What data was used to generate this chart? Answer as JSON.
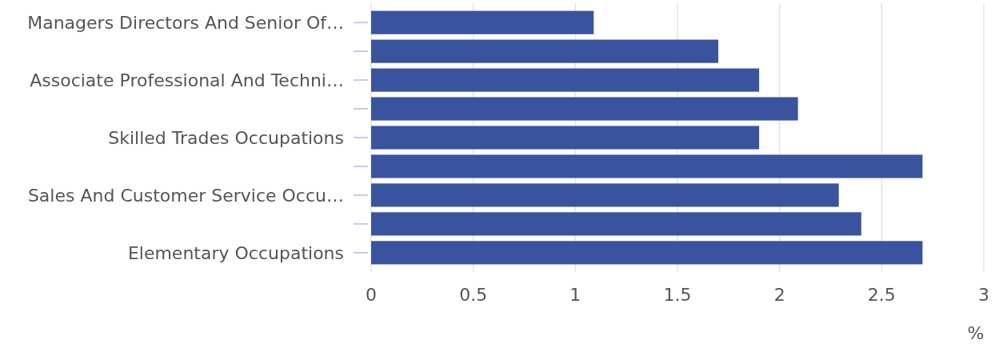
{
  "chart_data": {
    "type": "bar",
    "orientation": "horizontal",
    "xlabel": "%",
    "categories": [
      "Managers Directors And Senior Of…",
      null,
      "Associate Professional And Techni…",
      null,
      "Skilled Trades Occupations",
      null,
      "Sales And Customer Service Occu…",
      null,
      "Elementary Occupations"
    ],
    "values": [
      1.09,
      1.7,
      1.9,
      2.09,
      1.9,
      2.7,
      2.29,
      2.4,
      2.7
    ],
    "color": "#3a539e",
    "xlim": [
      0,
      3
    ],
    "xticks": [
      0,
      0.5,
      1,
      1.5,
      2,
      2.5,
      3
    ],
    "grid": "x"
  }
}
